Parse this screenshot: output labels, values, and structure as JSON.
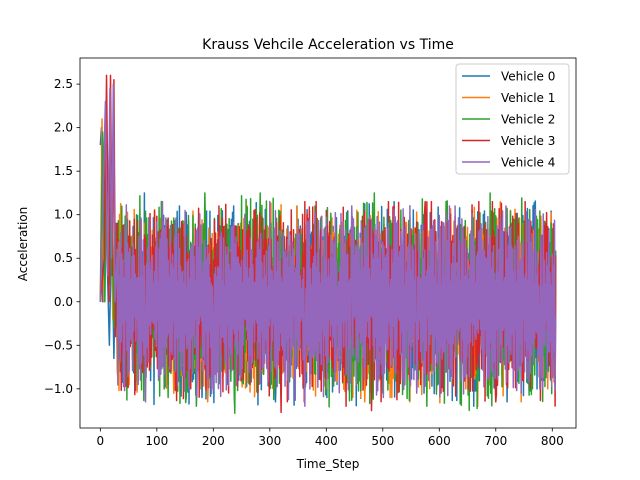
{
  "chart_data": {
    "type": "line",
    "title": "Krauss Vehcile Acceleration vs Time",
    "xlabel": "Time_Step",
    "ylabel": "Acceleration",
    "xlim": [
      -36,
      842
    ],
    "ylim": [
      -1.45,
      2.8
    ],
    "xticks": [
      0,
      100,
      200,
      300,
      400,
      500,
      600,
      700,
      800
    ],
    "yticks": [
      -1.0,
      -0.5,
      0.0,
      0.5,
      1.0,
      1.5,
      2.0,
      2.5
    ],
    "ytick_labels": [
      "−1.0",
      "−0.5",
      "0.0",
      "0.5",
      "1.0",
      "1.5",
      "2.0",
      "2.5"
    ],
    "legend_position": "top-right",
    "grid": false,
    "series": [
      {
        "name": "Vehicle 0",
        "color": "#1f77b4",
        "start": 0,
        "step_count": 806,
        "initial": [
          [
            0,
            1.8
          ],
          [
            2,
            2.0
          ],
          [
            4,
            0.0
          ],
          [
            8,
            1.9
          ],
          [
            12,
            0.5
          ],
          [
            16,
            -0.5
          ],
          [
            20,
            0.9
          ],
          [
            24,
            -0.65
          ],
          [
            28,
            0.9
          ],
          [
            32,
            -0.6
          ]
        ],
        "steady": {
          "min": -1.2,
          "max": 1.25
        },
        "samples": [
          [
            62,
            -1.02
          ],
          [
            78,
            1.25
          ],
          [
            95,
            -1.18
          ],
          [
            140,
            1.1
          ],
          [
            180,
            -1.1
          ],
          [
            236,
            1.1
          ],
          [
            310,
            -1.15
          ],
          [
            401,
            -1.1
          ],
          [
            520,
            1.15
          ],
          [
            661,
            -1.2
          ],
          [
            720,
            -1.15
          ],
          [
            800,
            0.6
          ]
        ]
      },
      {
        "name": "Vehicle 1",
        "color": "#ff7f0e",
        "start": 0,
        "step_count": 806,
        "initial": [
          [
            0,
            0.0
          ],
          [
            3,
            2.1
          ],
          [
            6,
            0.0
          ],
          [
            10,
            2.05
          ],
          [
            14,
            0.3
          ],
          [
            18,
            1.4
          ],
          [
            22,
            -0.2
          ],
          [
            26,
            0.9
          ],
          [
            30,
            -0.8
          ]
        ],
        "steady": {
          "min": -1.2,
          "max": 1.15
        },
        "samples": [
          [
            130,
            -1.05
          ],
          [
            190,
            -1.15
          ],
          [
            260,
            1.1
          ],
          [
            348,
            1.1
          ],
          [
            400,
            -1.0
          ],
          [
            468,
            -1.15
          ],
          [
            516,
            -1.1
          ],
          [
            548,
            -1.15
          ],
          [
            668,
            -1.2
          ],
          [
            745,
            -1.15
          ],
          [
            792,
            -1.0
          ]
        ]
      },
      {
        "name": "Vehicle 2",
        "color": "#2ca02c",
        "start": 0,
        "step_count": 806,
        "initial": [
          [
            0,
            0.0
          ],
          [
            4,
            1.95
          ],
          [
            8,
            0.0
          ],
          [
            12,
            1.8
          ],
          [
            16,
            0.2
          ],
          [
            20,
            1.5
          ],
          [
            24,
            -0.3
          ],
          [
            28,
            0.8
          ]
        ],
        "steady": {
          "min": -1.28,
          "max": 1.25
        },
        "samples": [
          [
            120,
            -1.1
          ],
          [
            152,
            -1.1
          ],
          [
            170,
            -1.2
          ],
          [
            185,
            1.25
          ],
          [
            238,
            -1.28
          ],
          [
            283,
            1.25
          ],
          [
            485,
            1.25
          ],
          [
            500,
            -1.05
          ],
          [
            578,
            -1.2
          ],
          [
            612,
            1.15
          ],
          [
            690,
            1.25
          ]
        ]
      },
      {
        "name": "Vehicle 3",
        "color": "#d62728",
        "start": 0,
        "step_count": 806,
        "initial": [
          [
            0,
            0.0
          ],
          [
            7,
            0.5
          ],
          [
            11,
            2.6
          ],
          [
            15,
            0.0
          ],
          [
            18,
            2.6
          ],
          [
            21,
            0.3
          ],
          [
            24,
            2.55
          ],
          [
            27,
            -0.4
          ],
          [
            30,
            0.9
          ]
        ],
        "steady": {
          "min": -1.27,
          "max": 1.15
        },
        "samples": [
          [
            160,
            -1.0
          ],
          [
            210,
            1.1
          ],
          [
            320,
            -1.27
          ],
          [
            362,
            1.15
          ],
          [
            435,
            -1.2
          ],
          [
            480,
            -1.25
          ],
          [
            520,
            1.1
          ],
          [
            575,
            1.15
          ],
          [
            603,
            -1.05
          ],
          [
            700,
            -1.15
          ]
        ]
      },
      {
        "name": "Vehicle 4",
        "color": "#9467bd",
        "start": 0,
        "step_count": 806,
        "initial": [
          [
            0,
            0.0
          ],
          [
            5,
            1.3
          ],
          [
            9,
            2.3
          ],
          [
            13,
            0.3
          ],
          [
            17,
            2.45
          ],
          [
            20,
            0.5
          ],
          [
            23,
            2.5
          ],
          [
            26,
            0.0
          ],
          [
            30,
            0.6
          ]
        ],
        "steady": {
          "min": -1.2,
          "max": 1.15
        },
        "samples": [
          [
            80,
            -1.15
          ],
          [
            110,
            1.15
          ],
          [
            200,
            -1.0
          ],
          [
            300,
            1.15
          ],
          [
            362,
            -1.2
          ],
          [
            445,
            1.1
          ],
          [
            560,
            -1.05
          ],
          [
            628,
            1.1
          ],
          [
            745,
            -1.05
          ],
          [
            778,
            -1.0
          ],
          [
            806,
            -0.18
          ]
        ]
      }
    ]
  }
}
